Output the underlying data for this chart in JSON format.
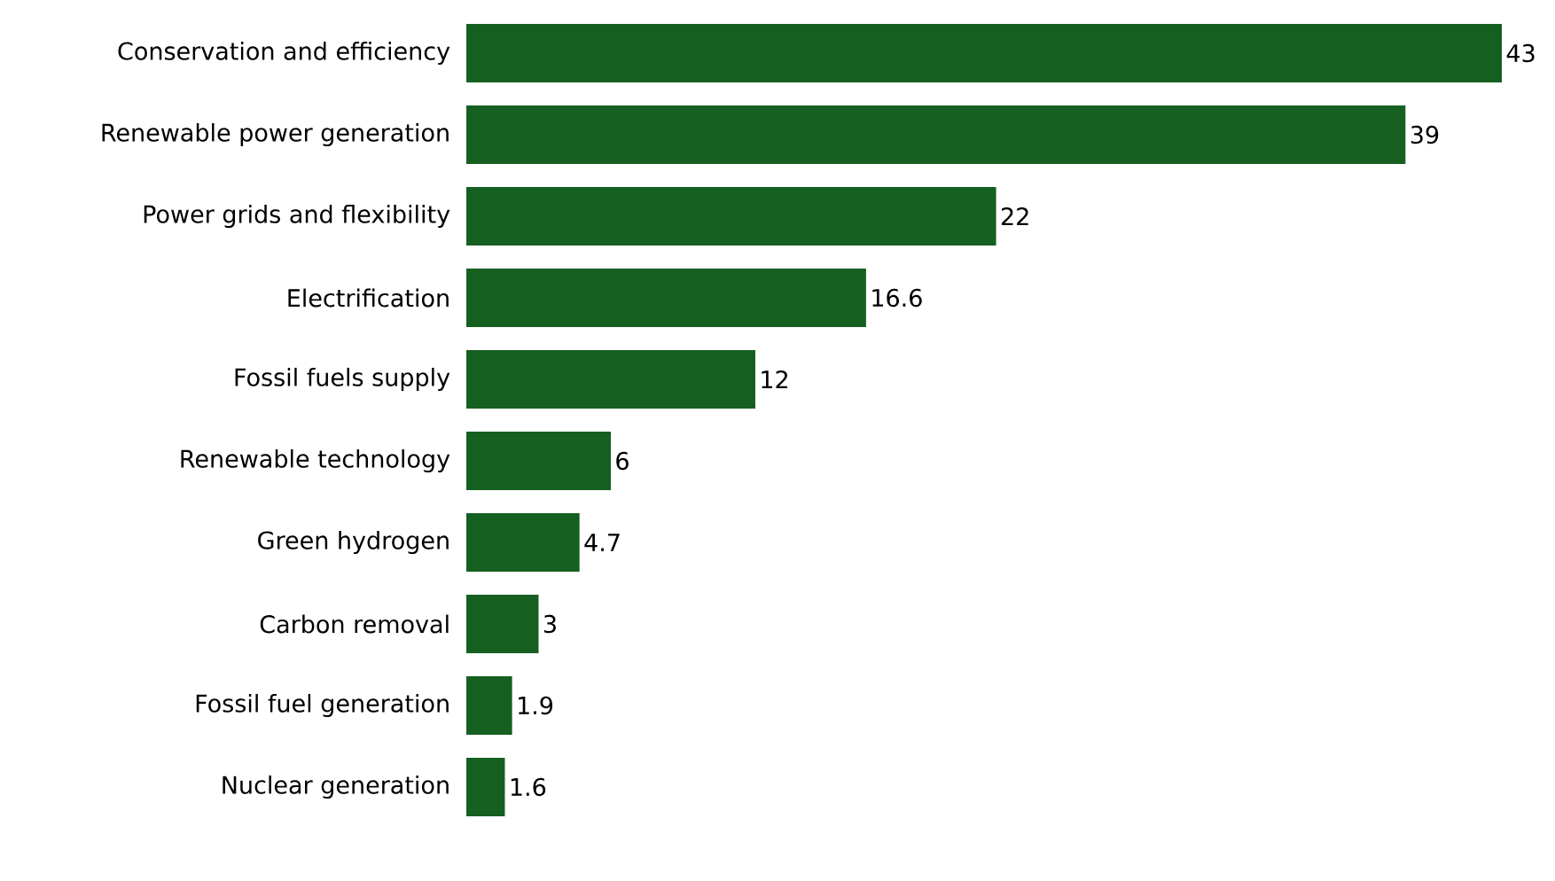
{
  "chart_data": {
    "type": "bar",
    "orientation": "horizontal",
    "data_labels": true,
    "color": "#155f20",
    "categories": [
      "Conservation and efficiency",
      "Renewable power generation",
      "Power grids and flexibility",
      "Electrification",
      "Fossil fuels supply",
      "Renewable technology",
      "Green hydrogen",
      "Carbon removal",
      "Fossil fuel generation",
      "Nuclear generation"
    ],
    "values": [
      43,
      39,
      22,
      16.6,
      12,
      6,
      4.7,
      3,
      1.9,
      1.6
    ]
  }
}
